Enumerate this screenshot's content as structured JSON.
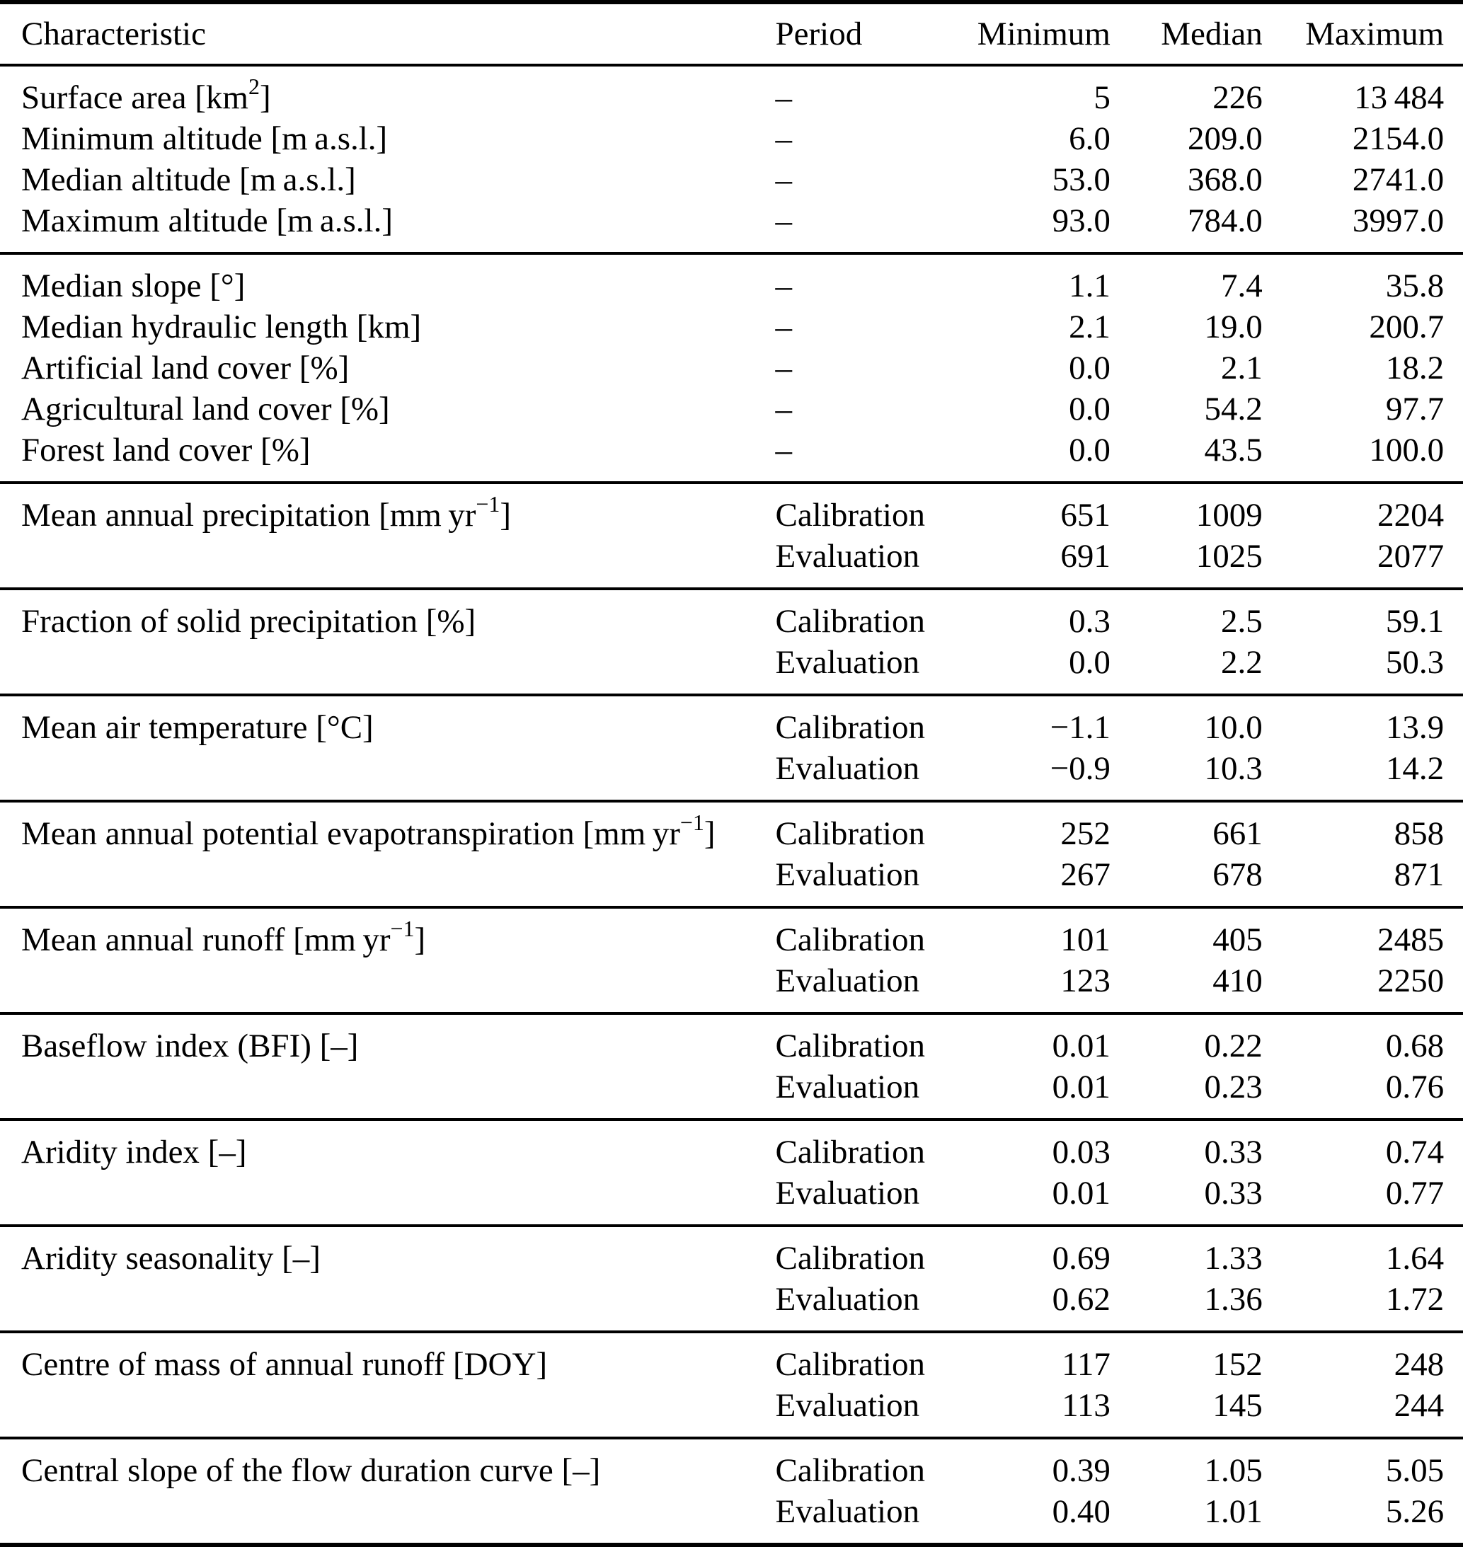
{
  "table": {
    "columns": {
      "characteristic": "Characteristic",
      "period": "Period",
      "minimum": "Minimum",
      "median": "Median",
      "maximum": "Maximum"
    },
    "groups": [
      {
        "rows": [
          {
            "characteristic": [
              {
                "text": "Surface area [km"
              },
              {
                "sup": "2"
              },
              {
                "text": "]"
              }
            ],
            "period": "–",
            "minimum": "5",
            "median": "226",
            "maximum": "13 484"
          },
          {
            "characteristic": [
              {
                "text": "Minimum altitude [m a.s.l.]"
              }
            ],
            "period": "–",
            "minimum": "6.0",
            "median": "209.0",
            "maximum": "2154.0"
          },
          {
            "characteristic": [
              {
                "text": "Median altitude [m a.s.l.]"
              }
            ],
            "period": "–",
            "minimum": "53.0",
            "median": "368.0",
            "maximum": "2741.0"
          },
          {
            "characteristic": [
              {
                "text": "Maximum altitude [m a.s.l.]"
              }
            ],
            "period": "–",
            "minimum": "93.0",
            "median": "784.0",
            "maximum": "3997.0"
          }
        ]
      },
      {
        "rows": [
          {
            "characteristic": [
              {
                "text": "Median slope [°]"
              }
            ],
            "period": "–",
            "minimum": "1.1",
            "median": "7.4",
            "maximum": "35.8"
          },
          {
            "characteristic": [
              {
                "text": "Median hydraulic length [km]"
              }
            ],
            "period": "–",
            "minimum": "2.1",
            "median": "19.0",
            "maximum": "200.7"
          },
          {
            "characteristic": [
              {
                "text": "Artificial land cover [%]"
              }
            ],
            "period": "–",
            "minimum": "0.0",
            "median": "2.1",
            "maximum": "18.2"
          },
          {
            "characteristic": [
              {
                "text": "Agricultural land cover [%]"
              }
            ],
            "period": "–",
            "minimum": "0.0",
            "median": "54.2",
            "maximum": "97.7"
          },
          {
            "characteristic": [
              {
                "text": "Forest land cover [%]"
              }
            ],
            "period": "–",
            "minimum": "0.0",
            "median": "43.5",
            "maximum": "100.0"
          }
        ]
      },
      {
        "rows": [
          {
            "characteristic": [
              {
                "text": "Mean annual precipitation [mm yr"
              },
              {
                "sup": "−1"
              },
              {
                "text": "]"
              }
            ],
            "period": "Calibration",
            "minimum": "651",
            "median": "1009",
            "maximum": "2204"
          },
          {
            "period": "Evaluation",
            "minimum": "691",
            "median": "1025",
            "maximum": "2077"
          }
        ]
      },
      {
        "rows": [
          {
            "characteristic": [
              {
                "text": "Fraction of solid precipitation [%]"
              }
            ],
            "period": "Calibration",
            "minimum": "0.3",
            "median": "2.5",
            "maximum": "59.1"
          },
          {
            "period": "Evaluation",
            "minimum": "0.0",
            "median": "2.2",
            "maximum": "50.3"
          }
        ]
      },
      {
        "rows": [
          {
            "characteristic": [
              {
                "text": "Mean air temperature [°C]"
              }
            ],
            "period": "Calibration",
            "minimum": "−1.1",
            "median": "10.0",
            "maximum": "13.9"
          },
          {
            "period": "Evaluation",
            "minimum": "−0.9",
            "median": "10.3",
            "maximum": "14.2"
          }
        ]
      },
      {
        "rows": [
          {
            "characteristic": [
              {
                "text": "Mean annual potential evapotranspiration [mm yr"
              },
              {
                "sup": "−1"
              },
              {
                "text": "]"
              }
            ],
            "period": "Calibration",
            "minimum": "252",
            "median": "661",
            "maximum": "858"
          },
          {
            "period": "Evaluation",
            "minimum": "267",
            "median": "678",
            "maximum": "871"
          }
        ]
      },
      {
        "rows": [
          {
            "characteristic": [
              {
                "text": "Mean annual runoff [mm yr"
              },
              {
                "sup": "−1"
              },
              {
                "text": "]"
              }
            ],
            "period": "Calibration",
            "minimum": "101",
            "median": "405",
            "maximum": "2485"
          },
          {
            "period": "Evaluation",
            "minimum": "123",
            "median": "410",
            "maximum": "2250"
          }
        ]
      },
      {
        "rows": [
          {
            "characteristic": [
              {
                "text": "Baseflow index (BFI) [–]"
              }
            ],
            "period": "Calibration",
            "minimum": "0.01",
            "median": "0.22",
            "maximum": "0.68"
          },
          {
            "period": "Evaluation",
            "minimum": "0.01",
            "median": "0.23",
            "maximum": "0.76"
          }
        ]
      },
      {
        "rows": [
          {
            "characteristic": [
              {
                "text": "Aridity index [–]"
              }
            ],
            "period": "Calibration",
            "minimum": "0.03",
            "median": "0.33",
            "maximum": "0.74"
          },
          {
            "period": "Evaluation",
            "minimum": "0.01",
            "median": "0.33",
            "maximum": "0.77"
          }
        ]
      },
      {
        "rows": [
          {
            "characteristic": [
              {
                "text": "Aridity seasonality [–]"
              }
            ],
            "period": "Calibration",
            "minimum": "0.69",
            "median": "1.33",
            "maximum": "1.64"
          },
          {
            "period": "Evaluation",
            "minimum": "0.62",
            "median": "1.36",
            "maximum": "1.72"
          }
        ]
      },
      {
        "rows": [
          {
            "characteristic": [
              {
                "text": "Centre of mass of annual runoff [DOY]"
              }
            ],
            "period": "Calibration",
            "minimum": "117",
            "median": "152",
            "maximum": "248"
          },
          {
            "period": "Evaluation",
            "minimum": "113",
            "median": "145",
            "maximum": "244"
          }
        ]
      },
      {
        "rows": [
          {
            "characteristic": [
              {
                "text": "Central slope of the flow duration curve [–]"
              }
            ],
            "period": "Calibration",
            "minimum": "0.39",
            "median": "1.05",
            "maximum": "5.05"
          },
          {
            "period": "Evaluation",
            "minimum": "0.40",
            "median": "1.01",
            "maximum": "5.26"
          }
        ]
      }
    ]
  }
}
